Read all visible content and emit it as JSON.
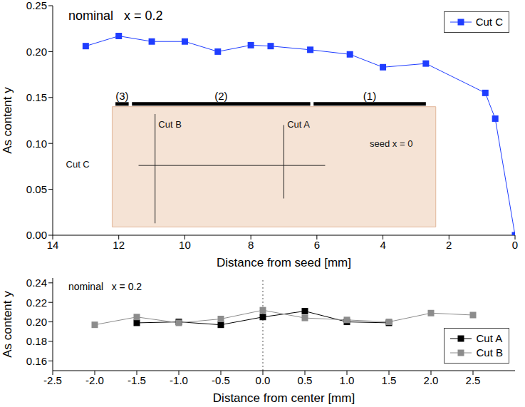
{
  "chart_data": [
    {
      "type": "line",
      "note": "nominal   x = 0.2",
      "x_label": "Distance from seed [mm]",
      "y_label": "As content y",
      "xlim": [
        14,
        0
      ],
      "xticks": [
        14,
        12,
        10,
        8,
        6,
        4,
        2,
        0
      ],
      "ylim": [
        0,
        0.25
      ],
      "yticks": [
        {
          "value": 0,
          "label": "0.00"
        },
        0.05,
        {
          "value": 0.1,
          "label": "0.10"
        },
        0.15,
        {
          "value": 0.2,
          "label": "0.20"
        },
        0.25
      ],
      "grid": false,
      "legend": "upper right",
      "series": [
        {
          "name": "Cut C",
          "color": "#1f3dff",
          "marker": "square",
          "x": [
            13,
            12,
            11,
            10,
            9,
            8,
            7.4,
            6.2,
            5,
            4,
            2.7,
            0.9,
            0.6,
            0
          ],
          "values": [
            0.206,
            0.217,
            0.211,
            0.211,
            0.2,
            0.207,
            0.206,
            0.202,
            0.197,
            0.183,
            0.187,
            0.155,
            0.127,
            0
          ]
        }
      ],
      "photo": {
        "x": [
          12.2,
          2.4
        ],
        "y": [
          0.009,
          0.14
        ]
      },
      "regions": [
        {
          "label": "(3)",
          "x": [
            12.1,
            11.7
          ],
          "y": 0.143
        },
        {
          "label": "(2)",
          "x": [
            11.6,
            6.2
          ],
          "y": 0.143
        },
        {
          "label": "(1)",
          "x": [
            6.1,
            2.7
          ],
          "y": 0.143
        }
      ],
      "cut_lines": [
        {
          "x": [
            10.9,
            10.9
          ],
          "y": [
            0.013,
            0.132
          ]
        },
        {
          "x": [
            7.0,
            7.0
          ],
          "y": [
            0.04,
            0.12
          ]
        },
        {
          "x": [
            11.4,
            5.75
          ],
          "y": [
            0.076,
            0.076
          ]
        }
      ],
      "photo_labels": [
        {
          "text": "Cut C",
          "x": 13.6,
          "y": 0.077
        },
        {
          "text": "Cut B",
          "x": 10.8,
          "y": 0.121
        },
        {
          "text": "Cut A",
          "x": 6.9,
          "y": 0.121
        },
        {
          "text": "seed x = 0",
          "x": 4.4,
          "y": 0.1
        }
      ]
    },
    {
      "type": "line",
      "note": "nominal   x = 0.2",
      "x_label": "Distance from center [mm]",
      "y_label": "As content y",
      "xlim": [
        -2.5,
        3.0
      ],
      "xticks": [
        -2.5,
        {
          "value": -2,
          "label": "-2.0"
        },
        -1.5,
        {
          "value": -1,
          "label": "-1.0"
        },
        -0.5,
        {
          "value": 0,
          "label": "0.0"
        },
        0.5,
        {
          "value": 1,
          "label": "1.0"
        },
        1.5,
        {
          "value": 2,
          "label": "2.0"
        },
        2.5
      ],
      "ylim": [
        0.15,
        0.245
      ],
      "yticks": [
        0.16,
        0.18,
        {
          "value": 0.2,
          "label": "0.20"
        },
        0.22,
        0.24
      ],
      "grid": false,
      "legend": "lower right",
      "vline": 0,
      "series": [
        {
          "name": "Cut A",
          "color": "#000000",
          "marker": "square",
          "x": [
            -1.5,
            -1,
            -0.5,
            0,
            0.5,
            1,
            1.5
          ],
          "values": [
            0.199,
            0.2,
            0.197,
            0.205,
            0.211,
            0.2,
            0.199
          ]
        },
        {
          "name": "Cut B",
          "color": "#8c8c8c",
          "marker": "square",
          "x": [
            -2,
            -1.5,
            -1,
            -0.5,
            0,
            0.5,
            1,
            1.5,
            2,
            2.5
          ],
          "values": [
            0.197,
            0.205,
            0.199,
            0.203,
            0.212,
            0.204,
            0.202,
            0.2,
            0.209,
            0.207
          ]
        }
      ]
    }
  ]
}
